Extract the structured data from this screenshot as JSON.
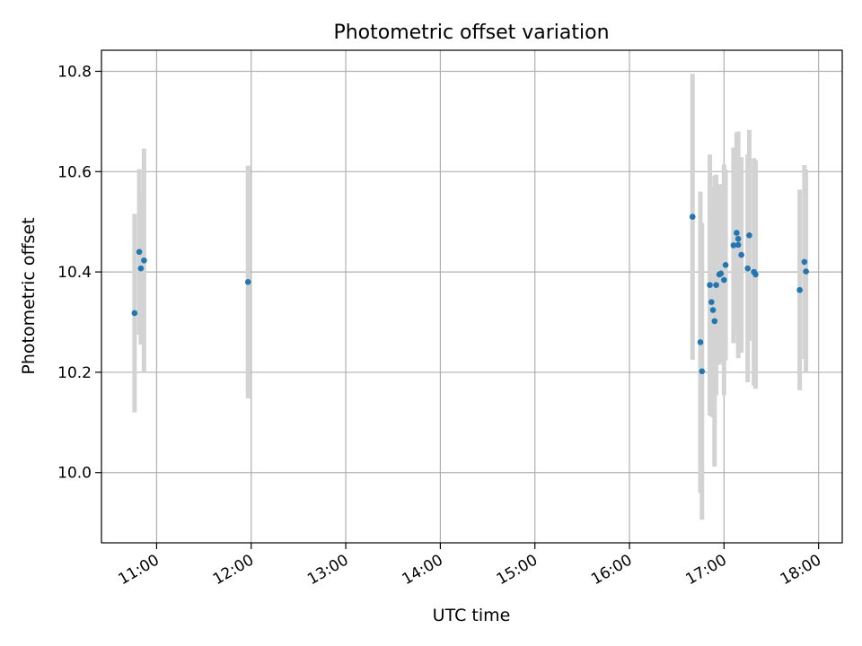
{
  "chart_data": {
    "type": "scatter",
    "title": "Photometric offset variation",
    "xlabel": "UTC time",
    "ylabel": "Photometric offset",
    "x_unit": "UTC time (HH:MM), errorbar plot with points",
    "xlim": [
      "10:25",
      "18:15"
    ],
    "ylim": [
      9.86,
      10.842
    ],
    "x_ticks": [
      "11:00",
      "12:00",
      "13:00",
      "14:00",
      "15:00",
      "16:00",
      "17:00",
      "18:00"
    ],
    "y_ticks": [
      10.0,
      10.2,
      10.4,
      10.6,
      10.8
    ],
    "y_tick_labels": [
      "10.0",
      "10.2",
      "10.4",
      "10.6",
      "10.8"
    ],
    "grid": true,
    "colors": {
      "points": "#1f77b4",
      "errorbars": "#d3d3d3",
      "grid": "#b0b0b0"
    },
    "points": [
      {
        "x": "10:46",
        "y": 10.318,
        "err": 0.198
      },
      {
        "x": "10:49",
        "y": 10.44,
        "err": 0.165
      },
      {
        "x": "10:50",
        "y": 10.407,
        "err": 0.152
      },
      {
        "x": "10:52",
        "y": 10.423,
        "err": 0.223
      },
      {
        "x": "11:58",
        "y": 10.38,
        "err": 0.232
      },
      {
        "x": "16:40",
        "y": 10.51,
        "err": 0.285
      },
      {
        "x": "16:45",
        "y": 10.26,
        "err": 0.3
      },
      {
        "x": "16:46",
        "y": 10.202,
        "err": 0.296
      },
      {
        "x": "16:51",
        "y": 10.374,
        "err": 0.26
      },
      {
        "x": "16:52",
        "y": 10.34,
        "err": 0.228
      },
      {
        "x": "16:53",
        "y": 10.324,
        "err": 0.214
      },
      {
        "x": "16:54",
        "y": 10.302,
        "err": 0.29
      },
      {
        "x": "16:55",
        "y": 10.374,
        "err": 0.22
      },
      {
        "x": "16:57",
        "y": 10.395,
        "err": 0.18
      },
      {
        "x": "16:58",
        "y": 10.397,
        "err": 0.178
      },
      {
        "x": "17:00",
        "y": 10.384,
        "err": 0.23
      },
      {
        "x": "17:01",
        "y": 10.414,
        "err": 0.19
      },
      {
        "x": "17:06",
        "y": 10.453,
        "err": 0.195
      },
      {
        "x": "17:08",
        "y": 10.478,
        "err": 0.2
      },
      {
        "x": "17:09",
        "y": 10.454,
        "err": 0.226
      },
      {
        "x": "17:09",
        "y": 10.466,
        "err": 0.15
      },
      {
        "x": "17:11",
        "y": 10.434,
        "err": 0.195
      },
      {
        "x": "17:15",
        "y": 10.407,
        "err": 0.227
      },
      {
        "x": "17:16",
        "y": 10.473,
        "err": 0.21
      },
      {
        "x": "17:19",
        "y": 10.4,
        "err": 0.227
      },
      {
        "x": "17:20",
        "y": 10.395,
        "err": 0.228
      },
      {
        "x": "17:48",
        "y": 10.364,
        "err": 0.2
      },
      {
        "x": "17:51",
        "y": 10.42,
        "err": 0.193
      },
      {
        "x": "17:52",
        "y": 10.401,
        "err": 0.203
      }
    ]
  }
}
